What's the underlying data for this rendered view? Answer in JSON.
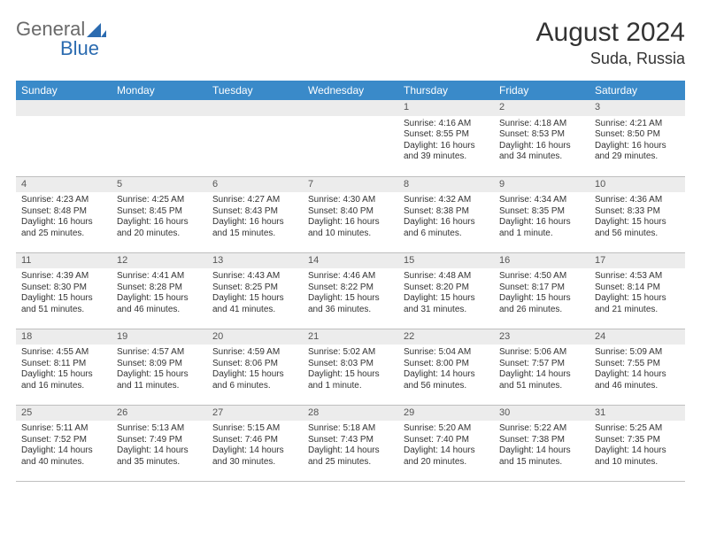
{
  "logo": {
    "general": "General",
    "blue": "Blue"
  },
  "title": "August 2024",
  "location": "Suda, Russia",
  "colors": {
    "header_bg": "#3a8ac9",
    "header_text": "#ffffff",
    "daynum_bg": "#ececec",
    "border": "#bfbfbf",
    "text": "#333333",
    "logo_gray": "#6a6a6a",
    "logo_blue": "#2b6bb0"
  },
  "weekdays": [
    "Sunday",
    "Monday",
    "Tuesday",
    "Wednesday",
    "Thursday",
    "Friday",
    "Saturday"
  ],
  "layout": {
    "lead_blank": 4,
    "days_in_month": 31
  },
  "days": {
    "1": {
      "sunrise": "4:16 AM",
      "sunset": "8:55 PM",
      "daylight": "16 hours and 39 minutes."
    },
    "2": {
      "sunrise": "4:18 AM",
      "sunset": "8:53 PM",
      "daylight": "16 hours and 34 minutes."
    },
    "3": {
      "sunrise": "4:21 AM",
      "sunset": "8:50 PM",
      "daylight": "16 hours and 29 minutes."
    },
    "4": {
      "sunrise": "4:23 AM",
      "sunset": "8:48 PM",
      "daylight": "16 hours and 25 minutes."
    },
    "5": {
      "sunrise": "4:25 AM",
      "sunset": "8:45 PM",
      "daylight": "16 hours and 20 minutes."
    },
    "6": {
      "sunrise": "4:27 AM",
      "sunset": "8:43 PM",
      "daylight": "16 hours and 15 minutes."
    },
    "7": {
      "sunrise": "4:30 AM",
      "sunset": "8:40 PM",
      "daylight": "16 hours and 10 minutes."
    },
    "8": {
      "sunrise": "4:32 AM",
      "sunset": "8:38 PM",
      "daylight": "16 hours and 6 minutes."
    },
    "9": {
      "sunrise": "4:34 AM",
      "sunset": "8:35 PM",
      "daylight": "16 hours and 1 minute."
    },
    "10": {
      "sunrise": "4:36 AM",
      "sunset": "8:33 PM",
      "daylight": "15 hours and 56 minutes."
    },
    "11": {
      "sunrise": "4:39 AM",
      "sunset": "8:30 PM",
      "daylight": "15 hours and 51 minutes."
    },
    "12": {
      "sunrise": "4:41 AM",
      "sunset": "8:28 PM",
      "daylight": "15 hours and 46 minutes."
    },
    "13": {
      "sunrise": "4:43 AM",
      "sunset": "8:25 PM",
      "daylight": "15 hours and 41 minutes."
    },
    "14": {
      "sunrise": "4:46 AM",
      "sunset": "8:22 PM",
      "daylight": "15 hours and 36 minutes."
    },
    "15": {
      "sunrise": "4:48 AM",
      "sunset": "8:20 PM",
      "daylight": "15 hours and 31 minutes."
    },
    "16": {
      "sunrise": "4:50 AM",
      "sunset": "8:17 PM",
      "daylight": "15 hours and 26 minutes."
    },
    "17": {
      "sunrise": "4:53 AM",
      "sunset": "8:14 PM",
      "daylight": "15 hours and 21 minutes."
    },
    "18": {
      "sunrise": "4:55 AM",
      "sunset": "8:11 PM",
      "daylight": "15 hours and 16 minutes."
    },
    "19": {
      "sunrise": "4:57 AM",
      "sunset": "8:09 PM",
      "daylight": "15 hours and 11 minutes."
    },
    "20": {
      "sunrise": "4:59 AM",
      "sunset": "8:06 PM",
      "daylight": "15 hours and 6 minutes."
    },
    "21": {
      "sunrise": "5:02 AM",
      "sunset": "8:03 PM",
      "daylight": "15 hours and 1 minute."
    },
    "22": {
      "sunrise": "5:04 AM",
      "sunset": "8:00 PM",
      "daylight": "14 hours and 56 minutes."
    },
    "23": {
      "sunrise": "5:06 AM",
      "sunset": "7:57 PM",
      "daylight": "14 hours and 51 minutes."
    },
    "24": {
      "sunrise": "5:09 AM",
      "sunset": "7:55 PM",
      "daylight": "14 hours and 46 minutes."
    },
    "25": {
      "sunrise": "5:11 AM",
      "sunset": "7:52 PM",
      "daylight": "14 hours and 40 minutes."
    },
    "26": {
      "sunrise": "5:13 AM",
      "sunset": "7:49 PM",
      "daylight": "14 hours and 35 minutes."
    },
    "27": {
      "sunrise": "5:15 AM",
      "sunset": "7:46 PM",
      "daylight": "14 hours and 30 minutes."
    },
    "28": {
      "sunrise": "5:18 AM",
      "sunset": "7:43 PM",
      "daylight": "14 hours and 25 minutes."
    },
    "29": {
      "sunrise": "5:20 AM",
      "sunset": "7:40 PM",
      "daylight": "14 hours and 20 minutes."
    },
    "30": {
      "sunrise": "5:22 AM",
      "sunset": "7:38 PM",
      "daylight": "14 hours and 15 minutes."
    },
    "31": {
      "sunrise": "5:25 AM",
      "sunset": "7:35 PM",
      "daylight": "14 hours and 10 minutes."
    }
  },
  "labels": {
    "sunrise": "Sunrise:",
    "sunset": "Sunset:",
    "daylight": "Daylight:"
  }
}
